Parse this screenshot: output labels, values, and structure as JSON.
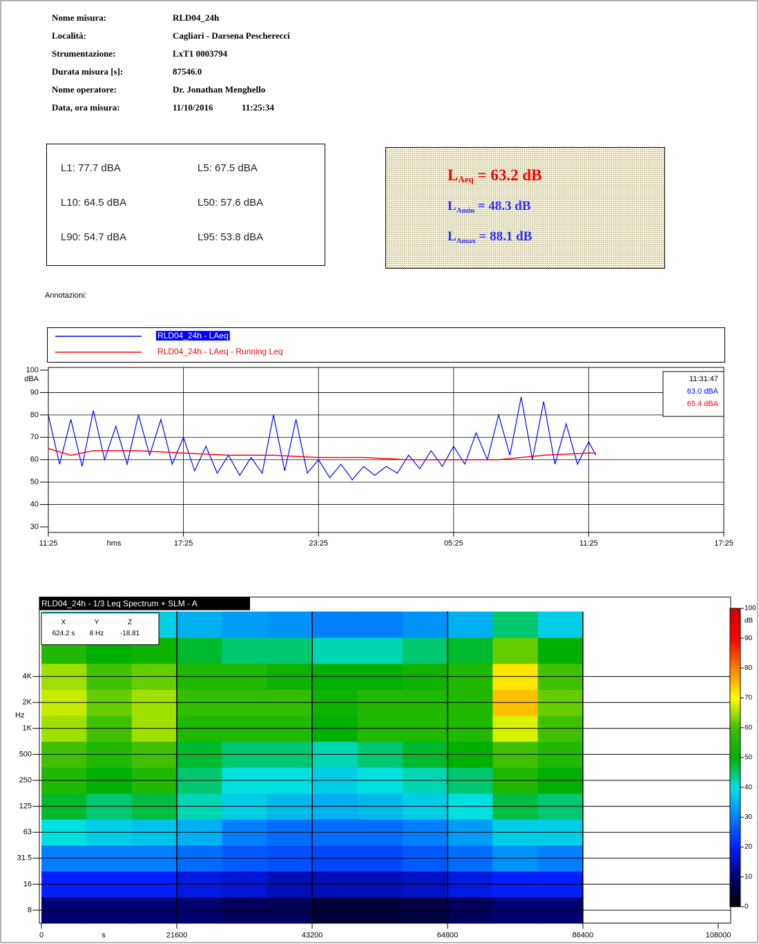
{
  "header": {
    "fields": [
      {
        "label": "Nome misura:",
        "value": "RLD04_24h"
      },
      {
        "label": "Località:",
        "value": "Cagliari - Darsena Pescherecci"
      },
      {
        "label": "Strumentazione:",
        "value": "LxT1 0003794"
      },
      {
        "label": "Durata misura [s]:",
        "value": "87546.0"
      },
      {
        "label": "Nome operatore:",
        "value": "Dr. Jonathan Menghello"
      },
      {
        "label": "Data, ora misura:",
        "value": "11/10/2016",
        "time": "11:25:34"
      }
    ]
  },
  "levels": [
    [
      "L1: 77.7 dBA",
      "L5: 67.5 dBA"
    ],
    [
      "L10: 64.5 dBA",
      "L50: 57.6 dBA"
    ],
    [
      "L90: 54.7 dBA",
      "L95: 53.8 dBA"
    ]
  ],
  "summary": [
    {
      "symbol": "L",
      "sub": "Aeq",
      "value": " = 63.2 dB",
      "color": "#ff0000"
    },
    {
      "symbol": "L",
      "sub": "Amin",
      "value": " = 48.3 dB",
      "color": "#2b2bff"
    },
    {
      "symbol": "L",
      "sub": "Amax",
      "value": " = 88.1 dB",
      "color": "#2b2bff"
    }
  ],
  "annotations_label": "Annotazioni:",
  "chart_data": [
    {
      "type": "line",
      "xlabel": "hms",
      "ylabel": "dBA",
      "xlim": [
        0,
        108000
      ],
      "xticks": [
        {
          "value": 0,
          "label": "11:25"
        },
        {
          "value": 21600,
          "label": "17:25"
        },
        {
          "value": 43200,
          "label": "23:25"
        },
        {
          "value": 64800,
          "label": "05:25"
        },
        {
          "value": 86400,
          "label": "11:25"
        },
        {
          "value": 108000,
          "label": "17:25"
        }
      ],
      "ylim": [
        30,
        100
      ],
      "yticks": [
        30,
        40,
        50,
        60,
        70,
        80,
        90,
        100
      ],
      "grid": true,
      "series": [
        {
          "name": "RLD04_24h - LAeq",
          "color": "#0000ff",
          "x": [
            0,
            1800,
            3600,
            5400,
            7200,
            9000,
            10800,
            12600,
            14400,
            16200,
            18000,
            19800,
            21600,
            23400,
            25200,
            27000,
            28800,
            30600,
            32400,
            34200,
            36000,
            37800,
            39600,
            41400,
            43200,
            45000,
            46800,
            48600,
            50400,
            52200,
            54000,
            55800,
            57600,
            59400,
            61200,
            63000,
            64800,
            66600,
            68400,
            70200,
            72000,
            73800,
            75600,
            77400,
            79200,
            81000,
            82800,
            84600,
            86400,
            87546
          ],
          "values": [
            80,
            58,
            78,
            57,
            82,
            60,
            75,
            58,
            80,
            62,
            78,
            58,
            70,
            55,
            66,
            54,
            62,
            53,
            61,
            54,
            80,
            55,
            78,
            54,
            60,
            52,
            58,
            51,
            57,
            53,
            57,
            54,
            62,
            56,
            64,
            57,
            66,
            58,
            72,
            60,
            80,
            62,
            88,
            60,
            86,
            58,
            76,
            58,
            68,
            62
          ]
        },
        {
          "name": "RLD04_24h - LAeq - Running Leq",
          "color": "#ff0000",
          "x": [
            0,
            3600,
            7200,
            14400,
            21600,
            28800,
            36000,
            43200,
            50400,
            57600,
            64800,
            72000,
            79200,
            86400,
            87546
          ],
          "values": [
            65,
            62,
            64,
            64,
            63,
            62,
            62,
            61,
            61,
            60,
            60,
            60,
            62,
            63,
            63
          ]
        }
      ],
      "cursor": {
        "time": "11:31:47",
        "values": [
          "63.0 dBA",
          "65.4 dBA"
        ]
      }
    },
    {
      "type": "heatmap",
      "title": "RLD04_24h - 1/3 Leq Spectrum + SLM - A",
      "xlabel": "s",
      "ylabel": "Hz",
      "xlim": [
        0,
        108000
      ],
      "xticks": [
        0,
        21600,
        43200,
        64800,
        86400,
        108000
      ],
      "x_bins": [
        0,
        7200,
        14400,
        21600,
        28800,
        36000,
        43200,
        50400,
        57600,
        64800,
        72000,
        79200,
        86400
      ],
      "categories": [
        "8",
        "16",
        "31.5",
        "63",
        "125",
        "250",
        "500",
        "1K",
        "2K",
        "4K",
        null,
        null
      ],
      "z": [
        [
          10,
          10,
          10,
          10,
          8,
          8,
          5,
          5,
          6,
          8,
          10,
          10
        ],
        [
          20,
          20,
          20,
          18,
          17,
          15,
          15,
          15,
          16,
          18,
          20,
          20
        ],
        [
          30,
          30,
          30,
          28,
          26,
          25,
          24,
          24,
          26,
          28,
          32,
          30
        ],
        [
          40,
          38,
          37,
          35,
          30,
          28,
          28,
          28,
          30,
          33,
          38,
          38
        ],
        [
          48,
          45,
          47,
          42,
          38,
          36,
          35,
          36,
          38,
          40,
          47,
          45
        ],
        [
          55,
          50,
          55,
          45,
          40,
          40,
          38,
          40,
          42,
          45,
          55,
          50
        ],
        [
          60,
          55,
          60,
          48,
          45,
          45,
          42,
          45,
          48,
          50,
          60,
          55
        ],
        [
          65,
          60,
          65,
          55,
          55,
          55,
          50,
          55,
          55,
          55,
          68,
          60
        ],
        [
          67,
          62,
          65,
          58,
          58,
          58,
          52,
          55,
          55,
          55,
          75,
          62
        ],
        [
          65,
          60,
          62,
          55,
          55,
          52,
          50,
          50,
          52,
          55,
          72,
          60
        ],
        [
          55,
          50,
          52,
          48,
          45,
          45,
          42,
          42,
          45,
          48,
          62,
          50
        ],
        [
          40,
          38,
          38,
          35,
          33,
          32,
          30,
          30,
          32,
          35,
          45,
          38
        ]
      ],
      "zlim": [
        0,
        100
      ],
      "zticks": [
        0,
        10,
        20,
        30,
        40,
        50,
        60,
        70,
        80,
        90,
        100
      ],
      "zlabel": "dB",
      "colorscale": [
        "#000000",
        "#000070",
        "#0020ff",
        "#0080ff",
        "#00e0e0",
        "#00b000",
        "#40c000",
        "#ffff00",
        "#ff8000",
        "#ff0000",
        "#d00000"
      ],
      "readout": {
        "headers": [
          "X",
          "Y",
          "Z"
        ],
        "values": [
          "624.2 s",
          "8 Hz",
          "-18.81"
        ]
      }
    }
  ]
}
